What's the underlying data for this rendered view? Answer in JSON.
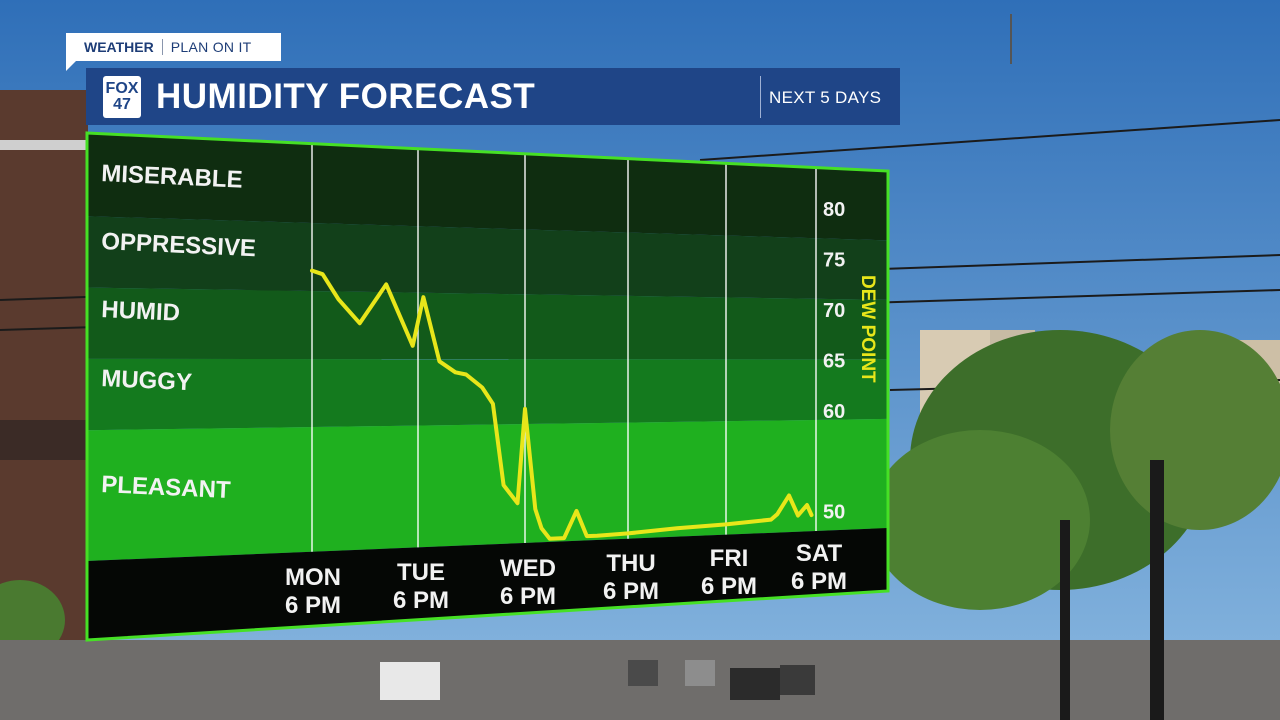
{
  "header": {
    "badge_left": "WEATHER",
    "badge_right": "PLAN ON IT",
    "logo_top": "FOX",
    "logo_bottom": "47",
    "title": "HUMIDITY FORECAST",
    "subtitle": "NEXT 5 DAYS"
  },
  "colors": {
    "title_bar": "#1f4587",
    "line": "#e8e61a",
    "border": "#46e025",
    "zone_miserable": "#0f2d10",
    "zone_oppressive": "#12401a",
    "zone_humid": "#125a1a",
    "zone_muggy": "#147a1e",
    "zone_pleasant": "#1fb01f",
    "axis_band": "#050705"
  },
  "chart_data": {
    "type": "line",
    "title": "HUMIDITY FORECAST",
    "ylabel": "DEW POINT",
    "y_ticks": [
      80,
      75,
      70,
      65,
      60,
      50
    ],
    "ylim": [
      48,
      84
    ],
    "zones": [
      {
        "label": "MISERABLE",
        "from": 77,
        "to": 84
      },
      {
        "label": "OPPRESSIVE",
        "from": 71,
        "to": 77
      },
      {
        "label": "HUMID",
        "from": 65,
        "to": 71
      },
      {
        "label": "MUGGY",
        "from": 59,
        "to": 65
      },
      {
        "label": "PLEASANT",
        "from": 48,
        "to": 59
      }
    ],
    "categories": [
      {
        "day": "MON",
        "time": "6 PM"
      },
      {
        "day": "TUE",
        "time": "6 PM"
      },
      {
        "day": "WED",
        "time": "6 PM"
      },
      {
        "day": "THU",
        "time": "6 PM"
      },
      {
        "day": "FRI",
        "time": "6 PM"
      },
      {
        "day": "SAT",
        "time": "6 PM"
      }
    ],
    "series": [
      {
        "x": [
          0,
          0.1,
          0.25,
          0.45,
          0.7,
          0.95,
          1.05,
          1.2,
          1.35,
          1.45,
          1.6,
          1.7,
          1.8,
          1.93,
          2.0,
          2.1,
          2.16,
          2.24,
          2.38,
          2.5,
          2.6,
          2.7,
          3.0,
          3.5,
          4.0,
          4.5,
          4.57,
          4.7,
          4.8,
          4.9,
          4.95
        ],
        "values": [
          72.8,
          72.5,
          70.3,
          68.2,
          71.7,
          66.2,
          70.6,
          64.8,
          63.8,
          63.6,
          62.4,
          60.9,
          53.4,
          51.7,
          60.4,
          51.1,
          49.3,
          48.3,
          48.3,
          50.8,
          48.4,
          48.4,
          48.5,
          48.8,
          49.0,
          49.3,
          49.8,
          51.6,
          49.6,
          50.6,
          49.6
        ]
      }
    ],
    "grid": true
  }
}
